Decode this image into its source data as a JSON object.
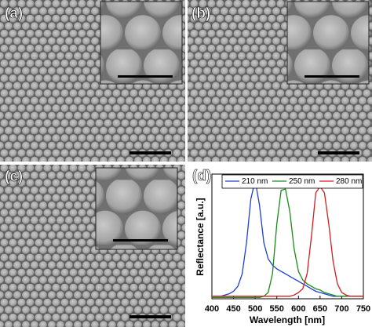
{
  "panel_labels": [
    "(a)",
    "(b)",
    "(c)",
    "(d)"
  ],
  "chart_data": {
    "type": "line",
    "x_label": "Wavelength [nm]",
    "y_label": "Reflectance [a.u.]",
    "x": [
      400,
      410,
      420,
      430,
      440,
      450,
      460,
      470,
      480,
      490,
      500,
      510,
      520,
      530,
      540,
      550,
      560,
      570,
      580,
      590,
      600,
      610,
      620,
      630,
      640,
      650,
      660,
      670,
      680,
      690,
      700,
      710,
      720,
      730,
      740,
      750
    ],
    "series": [
      {
        "name": "210 nm",
        "color": "#1f3fd0",
        "values": [
          0.02,
          0.02,
          0.02,
          0.03,
          0.04,
          0.06,
          0.1,
          0.2,
          0.45,
          0.8,
          0.95,
          0.75,
          0.45,
          0.32,
          0.27,
          0.24,
          0.22,
          0.2,
          0.18,
          0.16,
          0.14,
          0.12,
          0.1,
          0.08,
          0.06,
          0.05,
          0.04,
          0.03,
          0.02,
          0.02,
          0.02,
          0.02,
          0.02,
          0.02,
          0.02,
          0.02
        ]
      },
      {
        "name": "250 nm",
        "color": "#1a8a1a",
        "values": [
          0.01,
          0.01,
          0.01,
          0.01,
          0.01,
          0.01,
          0.01,
          0.01,
          0.01,
          0.01,
          0.01,
          0.01,
          0.02,
          0.05,
          0.2,
          0.6,
          0.87,
          0.88,
          0.7,
          0.4,
          0.22,
          0.15,
          0.12,
          0.1,
          0.08,
          0.07,
          0.05,
          0.04,
          0.03,
          0.02,
          0.02,
          0.02,
          0.02,
          0.02,
          0.02,
          0.02
        ]
      },
      {
        "name": "280 nm",
        "color": "#d02020",
        "values": [
          0.02,
          0.02,
          0.02,
          0.02,
          0.02,
          0.02,
          0.02,
          0.02,
          0.02,
          0.02,
          0.02,
          0.02,
          0.02,
          0.02,
          0.02,
          0.02,
          0.02,
          0.02,
          0.02,
          0.03,
          0.05,
          0.08,
          0.2,
          0.5,
          0.85,
          0.9,
          0.85,
          0.6,
          0.3,
          0.12,
          0.05,
          0.03,
          0.02,
          0.02,
          0.02,
          0.02
        ]
      }
    ],
    "xlim": [
      400,
      750
    ],
    "xticks": [
      400,
      450,
      500,
      550,
      600,
      650,
      700,
      750
    ],
    "ylim": [
      0,
      1
    ],
    "legend": "top"
  }
}
